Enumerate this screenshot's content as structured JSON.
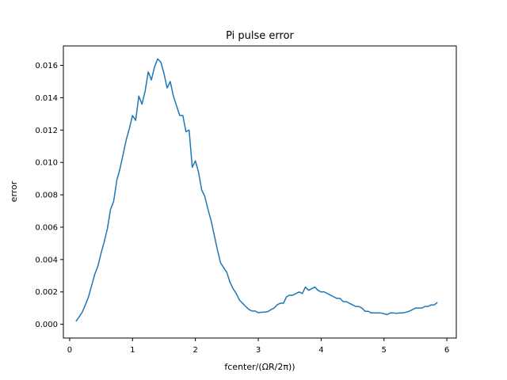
{
  "chart_data": {
    "type": "line",
    "title": "Pi pulse error",
    "xlabel": "fcenter/(ΩR/2π))",
    "ylabel": "error",
    "xlim": [
      -0.1,
      6.15
    ],
    "ylim": [
      -0.00085,
      0.0172
    ],
    "grid": false,
    "xticks": [
      0,
      1,
      2,
      3,
      4,
      5,
      6
    ],
    "xtick_labels": [
      "0",
      "1",
      "2",
      "3",
      "4",
      "5",
      "6"
    ],
    "yticks": [
      0.0,
      0.002,
      0.004,
      0.006,
      0.008,
      0.01,
      0.012,
      0.014,
      0.016
    ],
    "ytick_labels": [
      "0.000",
      "0.002",
      "0.004",
      "0.006",
      "0.008",
      "0.010",
      "0.012",
      "0.014",
      "0.016"
    ],
    "series": [
      {
        "color": "#1f77b4",
        "x": [
          0.1,
          0.15,
          0.2,
          0.25,
          0.3,
          0.35,
          0.4,
          0.45,
          0.5,
          0.55,
          0.6,
          0.65,
          0.7,
          0.75,
          0.8,
          0.85,
          0.9,
          0.95,
          1.0,
          1.05,
          1.1,
          1.15,
          1.2,
          1.25,
          1.3,
          1.35,
          1.4,
          1.45,
          1.5,
          1.55,
          1.6,
          1.65,
          1.7,
          1.75,
          1.8,
          1.85,
          1.9,
          1.95,
          2.0,
          2.05,
          2.1,
          2.15,
          2.2,
          2.25,
          2.3,
          2.35,
          2.4,
          2.45,
          2.5,
          2.55,
          2.6,
          2.65,
          2.7,
          2.75,
          2.8,
          2.85,
          2.9,
          2.95,
          3.0,
          3.05,
          3.1,
          3.15,
          3.2,
          3.25,
          3.3,
          3.35,
          3.4,
          3.45,
          3.5,
          3.55,
          3.6,
          3.65,
          3.7,
          3.75,
          3.8,
          3.85,
          3.9,
          3.95,
          4.0,
          4.05,
          4.1,
          4.15,
          4.2,
          4.25,
          4.3,
          4.35,
          4.4,
          4.45,
          4.5,
          4.55,
          4.6,
          4.65,
          4.7,
          4.75,
          4.8,
          4.85,
          4.9,
          4.95,
          5.0,
          5.05,
          5.1,
          5.15,
          5.2,
          5.25,
          5.3,
          5.35,
          5.4,
          5.45,
          5.5,
          5.55,
          5.6,
          5.65,
          5.7,
          5.75,
          5.8,
          5.85
        ],
        "y": [
          0.00018,
          0.00045,
          0.00075,
          0.0012,
          0.0017,
          0.0024,
          0.0031,
          0.0036,
          0.0044,
          0.0051,
          0.0059,
          0.0071,
          0.0076,
          0.0089,
          0.0096,
          0.0105,
          0.0114,
          0.0121,
          0.0129,
          0.0126,
          0.0141,
          0.0136,
          0.0144,
          0.0156,
          0.0151,
          0.0159,
          0.0164,
          0.0162,
          0.0155,
          0.0146,
          0.015,
          0.0141,
          0.0135,
          0.0129,
          0.0129,
          0.0119,
          0.012,
          0.0097,
          0.0101,
          0.0094,
          0.0083,
          0.0079,
          0.0071,
          0.0064,
          0.0055,
          0.0046,
          0.0038,
          0.0035,
          0.0032,
          0.0026,
          0.0022,
          0.0019,
          0.0015,
          0.0013,
          0.0011,
          0.00092,
          0.00082,
          0.00082,
          0.00072,
          0.00074,
          0.00075,
          0.00078,
          0.0009,
          0.001,
          0.0012,
          0.0013,
          0.0013,
          0.0017,
          0.0018,
          0.0018,
          0.0019,
          0.002,
          0.0019,
          0.0023,
          0.0021,
          0.0022,
          0.0023,
          0.0021,
          0.002,
          0.002,
          0.0019,
          0.0018,
          0.0017,
          0.0016,
          0.0016,
          0.0014,
          0.0014,
          0.0013,
          0.0012,
          0.0011,
          0.0011,
          0.001,
          0.0008,
          0.0008,
          0.0007,
          0.0007,
          0.0007,
          0.0007,
          0.00065,
          0.0006,
          0.0007,
          0.0007,
          0.00068,
          0.0007,
          0.0007,
          0.00075,
          0.0008,
          0.0009,
          0.001,
          0.001,
          0.001,
          0.0011,
          0.0011,
          0.0012,
          0.0012,
          0.00135
        ]
      }
    ]
  }
}
